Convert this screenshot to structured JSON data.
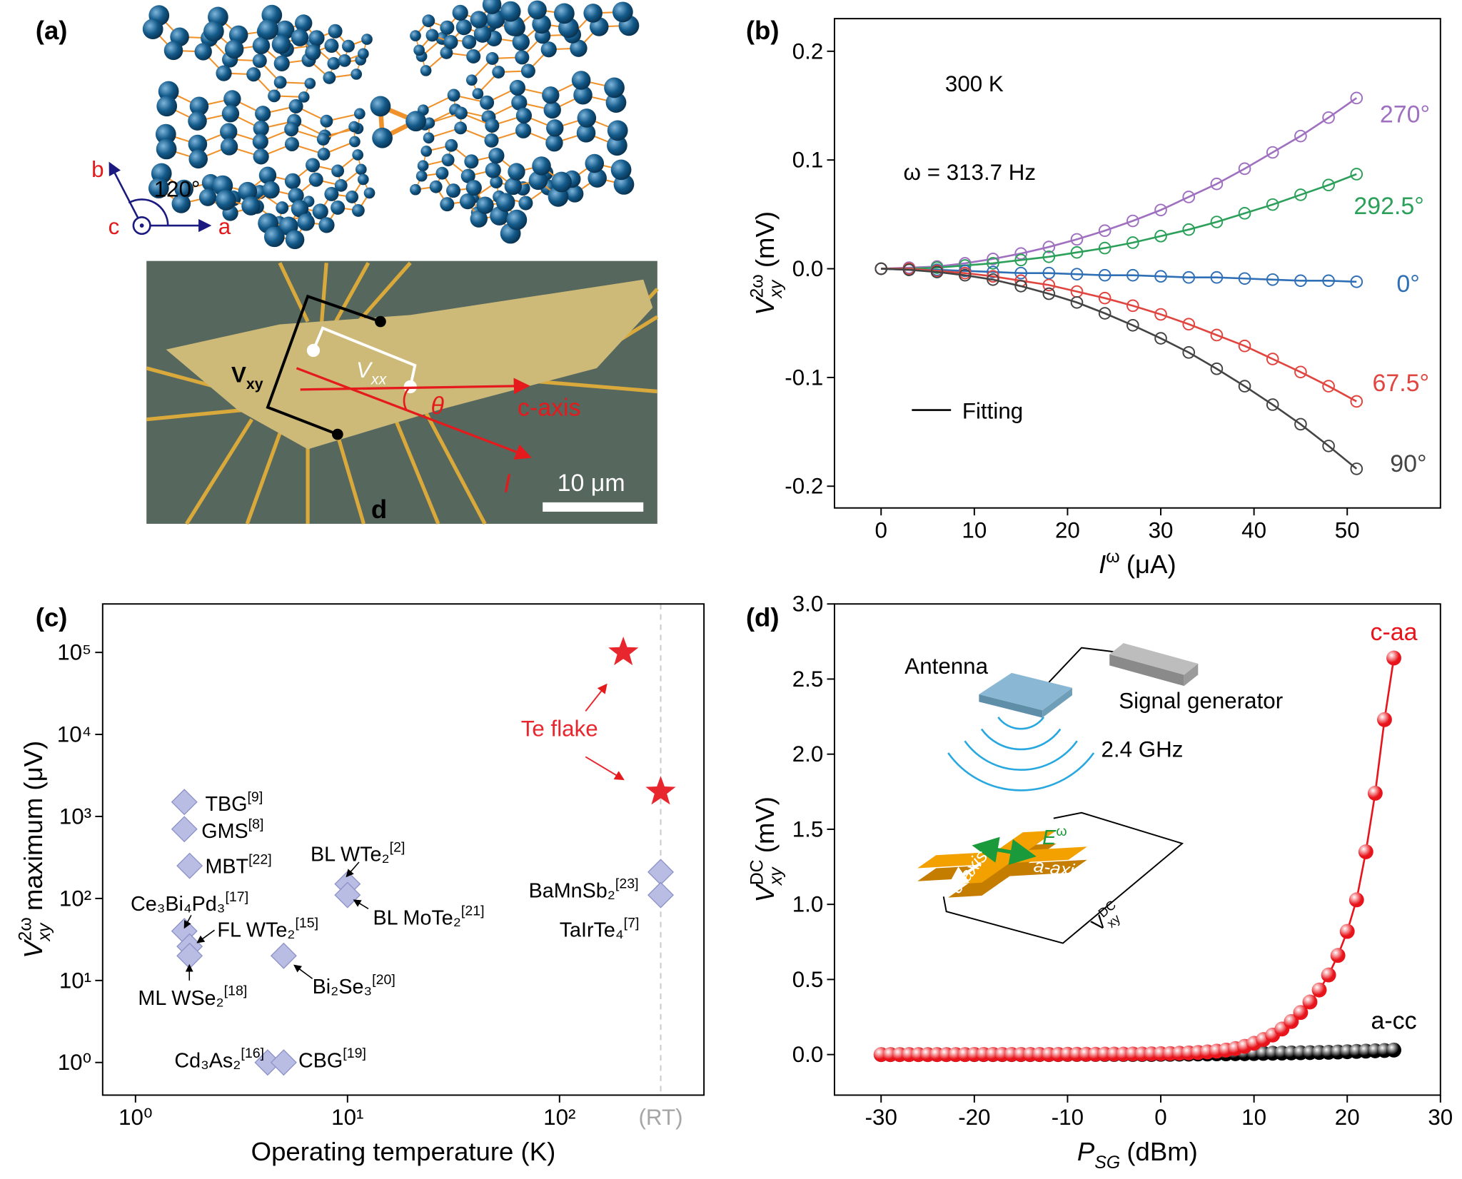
{
  "panel_a": {
    "panel": "(a)",
    "axes": {
      "b": "b",
      "c": "c",
      "a": "a",
      "angle": "120°"
    },
    "micrograph": {
      "v_xy": {
        "symbol": "V",
        "subscript": "xy"
      },
      "v_xx": {
        "symbol": "V",
        "subscript": "xx"
      },
      "angle": "θ",
      "c_axis": "c-axis",
      "current": "I",
      "scale_bar": "10 μm",
      "device": "d"
    }
  },
  "chart_data": [
    {
      "type": "line",
      "panel": "(b)",
      "marker": "open-circle",
      "x_label": {
        "symbol": "I",
        "superscript": "ω",
        "unit": "(μA)"
      },
      "y_label": {
        "symbol": "V",
        "superscript": "2ω",
        "subscript": "xy",
        "unit": "(mV)"
      },
      "annotations": [
        "300 K",
        "ω = 313.7 Hz"
      ],
      "fit_label": "Fitting",
      "fit_color": "#000000",
      "x": [
        0,
        3,
        6,
        9,
        12,
        15,
        18,
        21,
        24,
        27,
        30,
        33,
        36,
        39,
        42,
        45,
        48,
        51
      ],
      "series": [
        {
          "name": "270°",
          "color": "#a070c0",
          "values": [
            0,
            0.001,
            0.002,
            0.005,
            0.009,
            0.014,
            0.02,
            0.027,
            0.035,
            0.044,
            0.054,
            0.066,
            0.078,
            0.092,
            0.107,
            0.122,
            0.139,
            0.157
          ]
        },
        {
          "name": "292.5°",
          "color": "#2ca05a",
          "values": [
            0,
            0.0,
            0.001,
            0.003,
            0.005,
            0.008,
            0.011,
            0.015,
            0.019,
            0.024,
            0.03,
            0.036,
            0.043,
            0.051,
            0.059,
            0.068,
            0.077,
            0.087
          ]
        },
        {
          "name": "0°",
          "color": "#2f6fb5",
          "values": [
            0,
            -0.001,
            -0.001,
            -0.002,
            -0.003,
            -0.004,
            -0.004,
            -0.005,
            -0.006,
            -0.006,
            -0.007,
            -0.008,
            -0.008,
            -0.009,
            -0.01,
            -0.011,
            -0.011,
            -0.012
          ]
        },
        {
          "name": "67.5°",
          "color": "#e0453f",
          "values": [
            0,
            -0.0,
            -0.002,
            -0.004,
            -0.007,
            -0.011,
            -0.015,
            -0.021,
            -0.027,
            -0.034,
            -0.042,
            -0.051,
            -0.061,
            -0.071,
            -0.083,
            -0.095,
            -0.108,
            -0.122
          ]
        },
        {
          "name": "90°",
          "color": "#444444",
          "values": [
            0,
            -0.001,
            -0.003,
            -0.006,
            -0.01,
            -0.016,
            -0.023,
            -0.031,
            -0.041,
            -0.052,
            -0.064,
            -0.077,
            -0.092,
            -0.108,
            -0.125,
            -0.143,
            -0.163,
            -0.184
          ]
        }
      ],
      "xlim": [
        -5,
        60
      ],
      "ylim": [
        -0.22,
        0.23
      ],
      "xticks": [
        0,
        10,
        20,
        30,
        40,
        50
      ],
      "yticks": [
        -0.2,
        -0.1,
        {
          "value": 0,
          "label": "0.0"
        },
        0.1,
        0.2
      ]
    },
    {
      "type": "scatter",
      "panel": "(c)",
      "xscale": "log",
      "yscale": "log",
      "x_label": "Operating temperature (K)",
      "y_label": {
        "symbol": "V",
        "superscript": "2ω",
        "subscript": "xy",
        "unit": "maximum (μV)"
      },
      "marker_color": "#b9bde3",
      "points": [
        {
          "label": "TBG",
          "ref": "[9]",
          "x": 1.7,
          "y": 1500
        },
        {
          "label": "GMS",
          "ref": "[8]",
          "x": 1.7,
          "y": 700
        },
        {
          "label": "MBT",
          "ref": "[22]",
          "x": 1.8,
          "y": 250
        },
        {
          "label": "Ce₃Bi₄Pd₃",
          "ref": "[17]",
          "x": 1.7,
          "y": 40
        },
        {
          "label": "FL WTe₂",
          "ref": "[15]",
          "x": 1.8,
          "y": 26
        },
        {
          "label": "ML WSe₂",
          "ref": "[18]",
          "x": 1.8,
          "y": 20
        },
        {
          "label": "BL WTe₂",
          "ref": "[2]",
          "x": 10,
          "y": 150
        },
        {
          "label": "BL MoTe₂",
          "ref": "[21]",
          "x": 10,
          "y": 110
        },
        {
          "label": "Bi₂Se₃",
          "ref": "[20]",
          "x": 5,
          "y": 20
        },
        {
          "label": "Cd₃As₂",
          "ref": "[16]",
          "x": 4.2,
          "y": 1
        },
        {
          "label": "CBG",
          "ref": "[19]",
          "x": 5,
          "y": 1
        },
        {
          "label": "BaMnSb₂",
          "ref": "[23]",
          "x": 300,
          "y": 210
        },
        {
          "label": "TaIrTe₄",
          "ref": "[7]",
          "x": 300,
          "y": 110
        }
      ],
      "series": [
        {
          "name": "Te flake",
          "color": "#e8262d",
          "x": [
            200,
            300
          ],
          "values": [
            100000,
            2000
          ]
        }
      ],
      "xlim": [
        0.7,
        480
      ],
      "ylim": [
        0.4,
        390000
      ],
      "xticks": [
        {
          "value": 1,
          "label": "10⁰"
        },
        {
          "value": 10,
          "label": "10¹"
        },
        {
          "value": 100,
          "label": "10²"
        },
        {
          "value": 300,
          "label": "(RT)",
          "color": "#a6a6a6"
        }
      ],
      "yticks": [
        {
          "value": 1,
          "label": "10⁰"
        },
        {
          "value": 10,
          "label": "10¹"
        },
        {
          "value": 100,
          "label": "10²"
        },
        {
          "value": 1000,
          "label": "10³"
        },
        {
          "value": 10000,
          "label": "10⁴"
        },
        {
          "value": 100000,
          "label": "10⁵"
        }
      ]
    },
    {
      "type": "line",
      "panel": "(d)",
      "marker": "sphere",
      "x_label": {
        "symbol": "P",
        "subscript": "SG",
        "unit": "(dBm)"
      },
      "y_label": {
        "symbol": "V",
        "superscript": "DC",
        "subscript": "xy",
        "unit": "(mV)"
      },
      "inset": {
        "antenna": "Antenna",
        "generator": "Signal generator",
        "frequency": "2.4 GHz",
        "c_axis": "c-axis",
        "a_axis": "a-axis",
        "field": {
          "symbol": "E",
          "superscript": "ω"
        },
        "voltage": {
          "symbol": "V",
          "superscript": "DC",
          "subscript": "xy"
        }
      },
      "x": [
        -30,
        -29,
        -28,
        -27,
        -26,
        -25,
        -24,
        -23,
        -22,
        -21,
        -20,
        -19,
        -18,
        -17,
        -16,
        -15,
        -14,
        -13,
        -12,
        -11,
        -10,
        -9,
        -8,
        -7,
        -6,
        -5,
        -4,
        -3,
        -2,
        -1,
        0,
        1,
        2,
        3,
        4,
        5,
        6,
        7,
        8,
        9,
        10,
        11,
        12,
        13,
        14,
        15,
        16,
        17,
        18,
        19,
        20,
        21,
        22,
        23,
        24,
        25
      ],
      "series": [
        {
          "name": "c-aa",
          "color": "#e8141b",
          "values": [
            0,
            0,
            0,
            0,
            0,
            0,
            0,
            0,
            0,
            0,
            0.001,
            0.001,
            0.001,
            0.001,
            0.001,
            0.001,
            0.001,
            0.001,
            0.001,
            0.001,
            0.002,
            0.002,
            0.002,
            0.002,
            0.003,
            0.003,
            0.003,
            0.004,
            0.004,
            0.005,
            0.006,
            0.007,
            0.009,
            0.011,
            0.014,
            0.018,
            0.023,
            0.03,
            0.04,
            0.055,
            0.075,
            0.1,
            0.13,
            0.17,
            0.22,
            0.28,
            0.35,
            0.43,
            0.53,
            0.66,
            0.82,
            1.03,
            1.35,
            1.74,
            2.23,
            2.64
          ]
        },
        {
          "name": "a-cc",
          "color": "#000000",
          "values": [
            0,
            0,
            0,
            0,
            0,
            0,
            0,
            0,
            0,
            0,
            0,
            0,
            0,
            0,
            0,
            0,
            0,
            0,
            0,
            0,
            0.001,
            0.001,
            0.001,
            0.001,
            0.001,
            0.001,
            0.001,
            0.001,
            0.001,
            0.001,
            0.002,
            0.002,
            0.003,
            0.003,
            0.004,
            0.004,
            0.005,
            0.005,
            0.006,
            0.006,
            0.007,
            0.008,
            0.009,
            0.01,
            0.011,
            0.012,
            0.013,
            0.014,
            0.015,
            0.017,
            0.019,
            0.021,
            0.023,
            0.025,
            0.027,
            0.03
          ]
        }
      ],
      "xlim": [
        -35,
        30
      ],
      "ylim": [
        -0.27,
        3.0
      ],
      "xticks": [
        -30,
        -20,
        -10,
        0,
        10,
        20,
        30
      ],
      "yticks": [
        {
          "value": 0,
          "label": "0.0"
        },
        0.5,
        {
          "value": 1,
          "label": "1.0"
        },
        1.5,
        {
          "value": 2,
          "label": "2.0"
        },
        2.5,
        {
          "value": 3,
          "label": "3.0"
        }
      ]
    }
  ]
}
